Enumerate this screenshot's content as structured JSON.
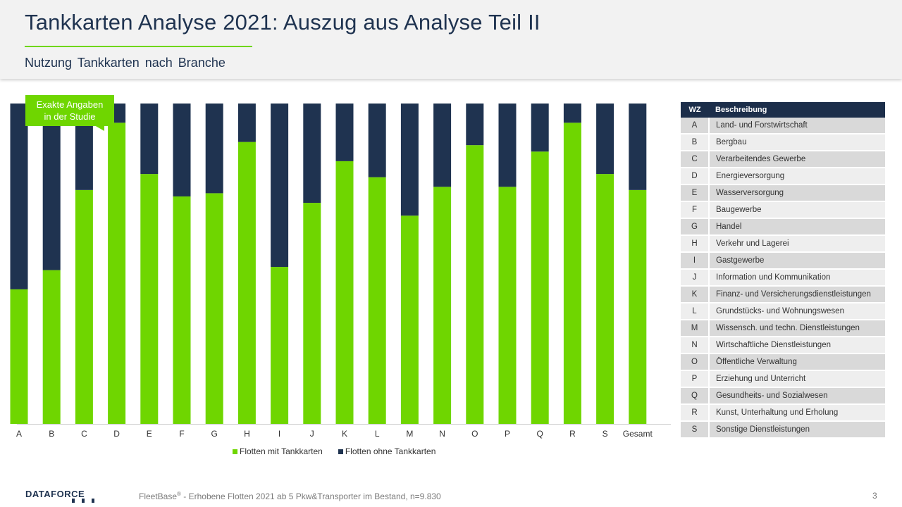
{
  "header": {
    "title": "Tankkarten Analyse 2021: Auszug aus Analyse Teil II",
    "subtitle": "Nutzung Tankkarten nach Branche"
  },
  "callout": {
    "line1": "Exakte Angaben",
    "line2": "in der Studie"
  },
  "chart_data": {
    "type": "bar",
    "stacked": true,
    "categories": [
      "A",
      "B",
      "C",
      "D",
      "E",
      "F",
      "G",
      "H",
      "I",
      "J",
      "K",
      "L",
      "M",
      "N",
      "O",
      "P",
      "Q",
      "R",
      "S",
      "Gesamt"
    ],
    "series": [
      {
        "name": "Flotten mit Tankkarten",
        "color": "#6fd600",
        "values": [
          42,
          48,
          73,
          94,
          78,
          71,
          72,
          88,
          49,
          69,
          82,
          77,
          65,
          74,
          87,
          74,
          85,
          94,
          78,
          73
        ]
      },
      {
        "name": "Flotten ohne Tankkarten",
        "color": "#1f3350",
        "values": [
          58,
          52,
          27,
          6,
          22,
          29,
          28,
          12,
          51,
          31,
          18,
          23,
          35,
          26,
          13,
          26,
          15,
          6,
          22,
          27
        ]
      }
    ],
    "ylim": [
      0,
      100
    ],
    "grid": false,
    "legend": "bottom"
  },
  "legend": {
    "with": "Flotten mit Tankkarten",
    "without": "Flotten ohne Tankkarten"
  },
  "colors": {
    "accent_green": "#6fd600",
    "navy": "#1f3350"
  },
  "wz_table": {
    "headers": [
      "WZ",
      "Beschreibung"
    ],
    "rows": [
      [
        "A",
        "Land- und Forstwirtschaft"
      ],
      [
        "B",
        "Bergbau"
      ],
      [
        "C",
        "Verarbeitendes Gewerbe"
      ],
      [
        "D",
        "Energieversorgung"
      ],
      [
        "E",
        "Wasserversorgung"
      ],
      [
        "F",
        "Baugewerbe"
      ],
      [
        "G",
        "Handel"
      ],
      [
        "H",
        "Verkehr und Lagerei"
      ],
      [
        "I",
        "Gastgewerbe"
      ],
      [
        "J",
        "Information und Kommunikation"
      ],
      [
        "K",
        "Finanz- und Versicherungsdienstleistungen"
      ],
      [
        "L",
        "Grundstücks- und Wohnungswesen"
      ],
      [
        "M",
        "Wissensch. und techn. Dienstleistungen"
      ],
      [
        "N",
        "Wirtschaftliche Dienstleistungen"
      ],
      [
        "O",
        "Öffentliche Verwaltung"
      ],
      [
        "P",
        "Erziehung und Unterricht"
      ],
      [
        "Q",
        "Gesundheits- und Sozialwesen"
      ],
      [
        "R",
        "Kunst, Unterhaltung und Erholung"
      ],
      [
        "S",
        "Sonstige Dienstleistungen"
      ]
    ]
  },
  "footer": {
    "logo": "DATAFORCE",
    "source_brand": "FleetBase",
    "source_reg": "®",
    "source_text": " - Erhobene Flotten 2021 ab 5 Pkw&Transporter  im Bestand, n=9.830",
    "page": "3"
  }
}
